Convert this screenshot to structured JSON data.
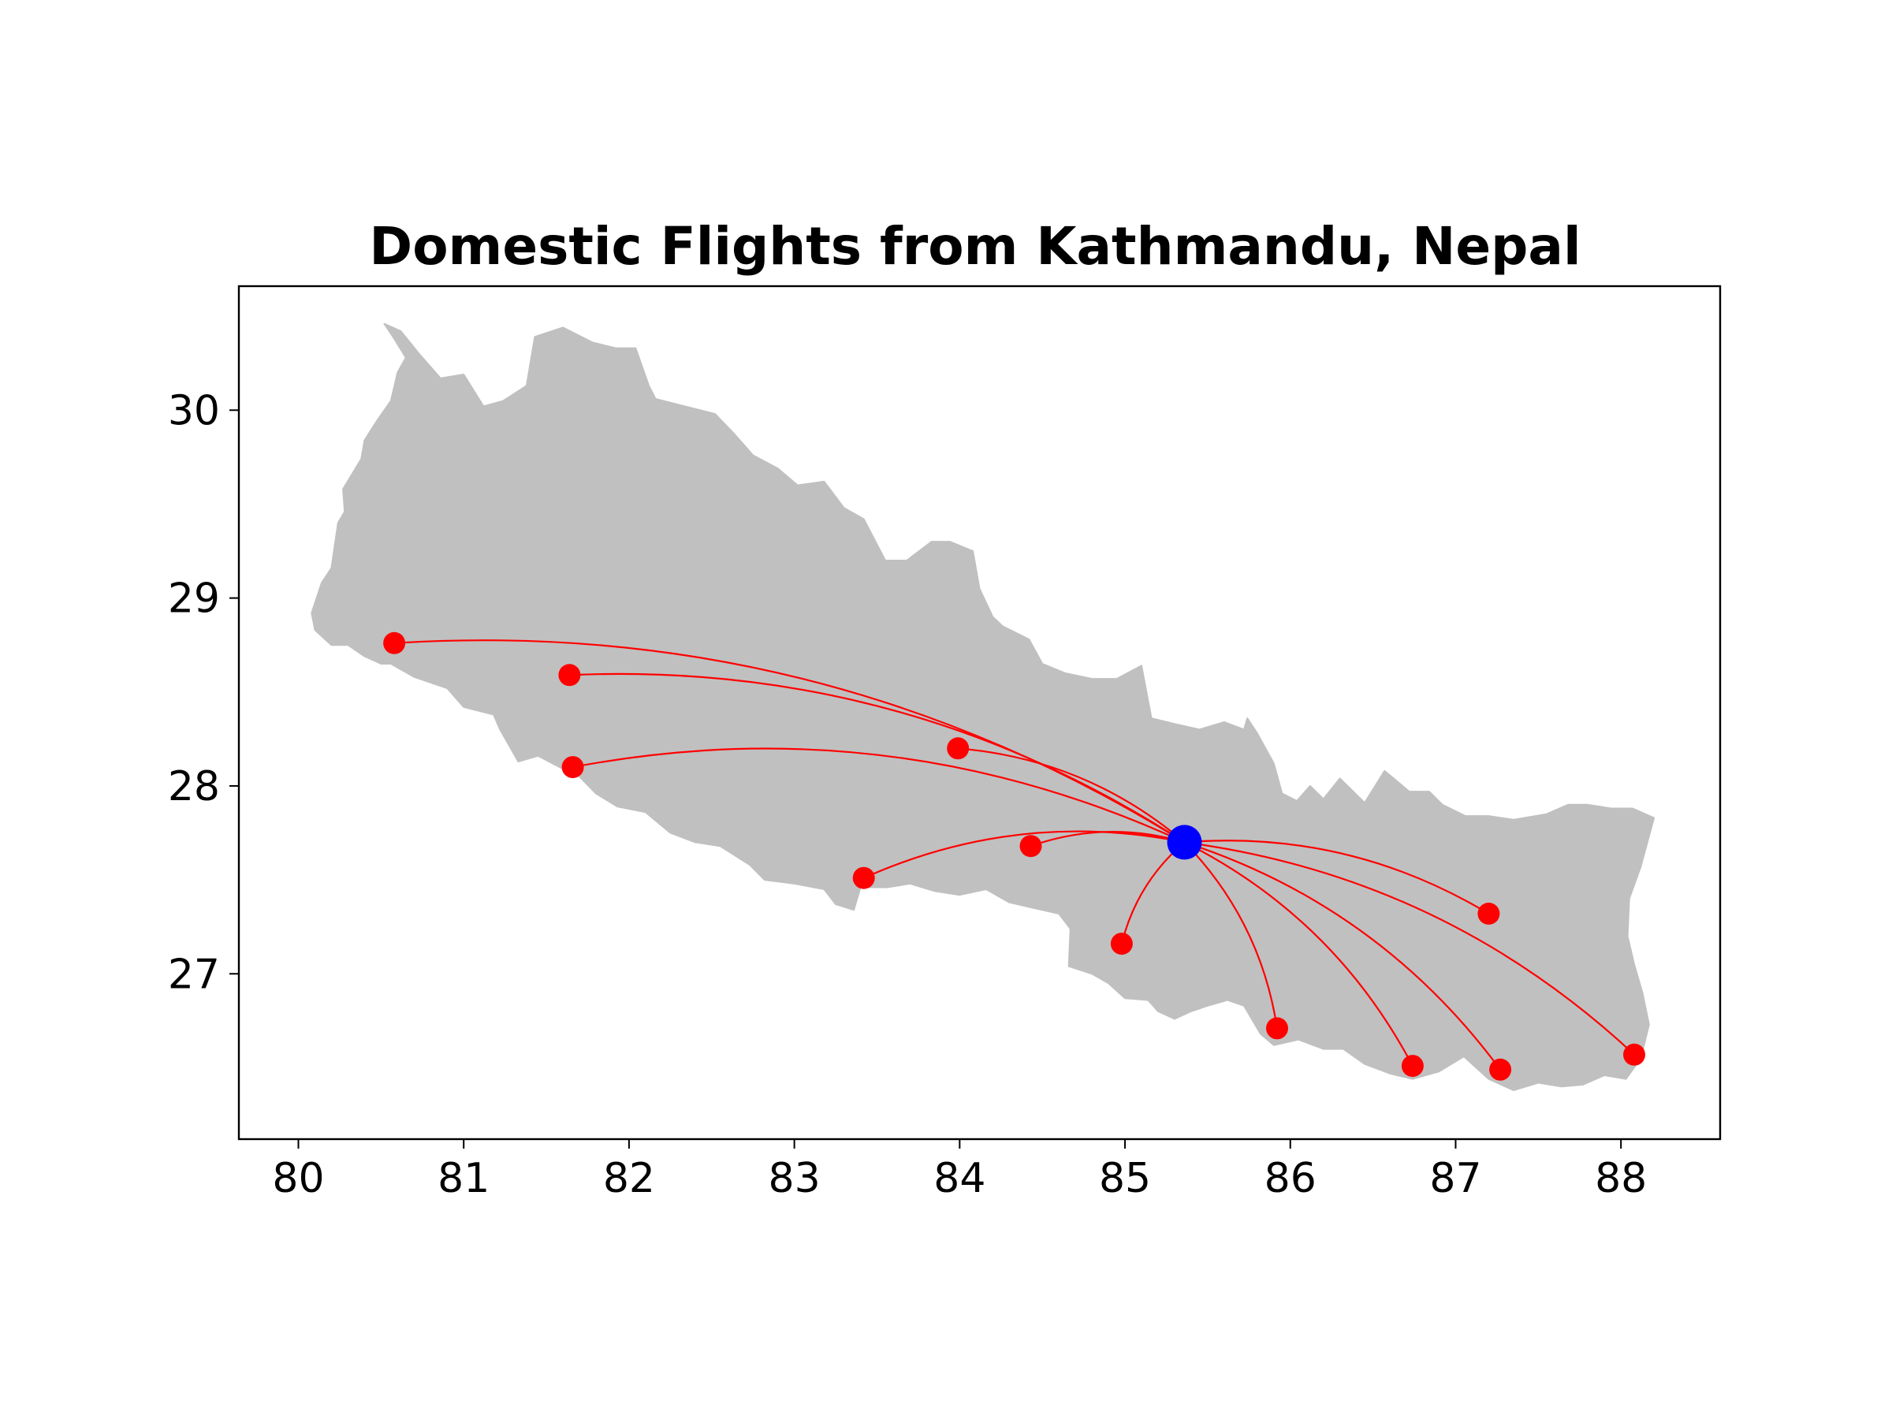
{
  "chart_data": {
    "type": "map",
    "title": "Domestic Flights from Kathmandu, Nepal",
    "xlabel": "",
    "ylabel": "",
    "xlim": [
      79.64,
      88.6
    ],
    "ylim": [
      26.12,
      30.66
    ],
    "xticks": [
      80,
      81,
      82,
      83,
      84,
      85,
      86,
      87,
      88
    ],
    "yticks": [
      27,
      28,
      29,
      30
    ],
    "grid": false,
    "colors": {
      "land": "#c0c0c0",
      "district_border": "#d3d3d3",
      "route": "#ff0000",
      "destination": "#ff0000",
      "origin": "#0000ff",
      "axes": "#000000"
    },
    "origin": {
      "lon": 85.36,
      "lat": 27.7
    },
    "destinations": [
      {
        "lon": 80.58,
        "lat": 28.76
      },
      {
        "lon": 81.64,
        "lat": 28.59
      },
      {
        "lon": 81.66,
        "lat": 28.1
      },
      {
        "lon": 83.99,
        "lat": 28.2
      },
      {
        "lon": 84.43,
        "lat": 27.68
      },
      {
        "lon": 83.42,
        "lat": 27.51
      },
      {
        "lon": 84.98,
        "lat": 27.16
      },
      {
        "lon": 85.92,
        "lat": 26.71
      },
      {
        "lon": 86.74,
        "lat": 26.51
      },
      {
        "lon": 87.27,
        "lat": 26.49
      },
      {
        "lon": 87.2,
        "lat": 27.32
      },
      {
        "lon": 88.08,
        "lat": 26.57
      }
    ],
    "nepal_outline": [
      [
        80.52,
        30.46
      ],
      [
        80.62,
        30.42
      ],
      [
        80.73,
        30.3
      ],
      [
        80.86,
        30.17
      ],
      [
        81.0,
        30.19
      ],
      [
        81.12,
        30.02
      ],
      [
        81.24,
        30.05
      ],
      [
        81.38,
        30.13
      ],
      [
        81.43,
        30.39
      ],
      [
        81.6,
        30.44
      ],
      [
        81.78,
        30.36
      ],
      [
        81.92,
        30.33
      ],
      [
        82.04,
        30.33
      ],
      [
        82.12,
        30.13
      ],
      [
        82.16,
        30.06
      ],
      [
        82.52,
        29.98
      ],
      [
        82.63,
        29.88
      ],
      [
        82.75,
        29.76
      ],
      [
        82.9,
        29.69
      ],
      [
        83.02,
        29.6
      ],
      [
        83.18,
        29.62
      ],
      [
        83.3,
        29.48
      ],
      [
        83.42,
        29.42
      ],
      [
        83.55,
        29.2
      ],
      [
        83.68,
        29.2
      ],
      [
        83.83,
        29.3
      ],
      [
        83.94,
        29.3
      ],
      [
        84.08,
        29.25
      ],
      [
        84.12,
        29.05
      ],
      [
        84.2,
        28.9
      ],
      [
        84.26,
        28.85
      ],
      [
        84.42,
        28.78
      ],
      [
        84.5,
        28.65
      ],
      [
        84.64,
        28.6
      ],
      [
        84.8,
        28.57
      ],
      [
        84.95,
        28.57
      ],
      [
        85.1,
        28.64
      ],
      [
        85.13,
        28.5
      ],
      [
        85.16,
        28.36
      ],
      [
        85.3,
        28.33
      ],
      [
        85.45,
        28.3
      ],
      [
        85.6,
        28.34
      ],
      [
        85.72,
        28.3
      ],
      [
        85.74,
        28.36
      ],
      [
        85.8,
        28.28
      ],
      [
        85.9,
        28.12
      ],
      [
        85.95,
        27.96
      ],
      [
        86.04,
        27.92
      ],
      [
        86.12,
        28.0
      ],
      [
        86.2,
        27.93
      ],
      [
        86.3,
        28.04
      ],
      [
        86.45,
        27.91
      ],
      [
        86.57,
        28.08
      ],
      [
        86.72,
        27.97
      ],
      [
        86.84,
        27.97
      ],
      [
        86.92,
        27.9
      ],
      [
        87.06,
        27.84
      ],
      [
        87.2,
        27.84
      ],
      [
        87.35,
        27.82
      ],
      [
        87.55,
        27.85
      ],
      [
        87.68,
        27.9
      ],
      [
        87.8,
        27.9
      ],
      [
        87.94,
        27.88
      ],
      [
        88.07,
        27.88
      ],
      [
        88.2,
        27.83
      ],
      [
        88.12,
        27.57
      ],
      [
        88.05,
        27.4
      ],
      [
        88.04,
        27.2
      ],
      [
        88.08,
        27.05
      ],
      [
        88.13,
        26.9
      ],
      [
        88.17,
        26.73
      ],
      [
        88.12,
        26.55
      ],
      [
        88.03,
        26.44
      ],
      [
        87.9,
        26.46
      ],
      [
        87.77,
        26.41
      ],
      [
        87.64,
        26.4
      ],
      [
        87.5,
        26.42
      ],
      [
        87.35,
        26.38
      ],
      [
        87.2,
        26.44
      ],
      [
        87.05,
        26.56
      ],
      [
        86.9,
        26.48
      ],
      [
        86.74,
        26.44
      ],
      [
        86.6,
        26.47
      ],
      [
        86.45,
        26.52
      ],
      [
        86.32,
        26.6
      ],
      [
        86.2,
        26.6
      ],
      [
        86.05,
        26.65
      ],
      [
        85.9,
        26.62
      ],
      [
        85.82,
        26.68
      ],
      [
        85.72,
        26.83
      ],
      [
        85.62,
        26.86
      ],
      [
        85.5,
        26.83
      ],
      [
        85.4,
        26.8
      ],
      [
        85.3,
        26.76
      ],
      [
        85.2,
        26.8
      ],
      [
        85.14,
        26.86
      ],
      [
        85.0,
        26.87
      ],
      [
        84.9,
        26.95
      ],
      [
        84.8,
        27.0
      ],
      [
        84.66,
        27.04
      ],
      [
        84.67,
        27.24
      ],
      [
        84.6,
        27.32
      ],
      [
        84.4,
        27.36
      ],
      [
        84.3,
        27.38
      ],
      [
        84.16,
        27.45
      ],
      [
        84.0,
        27.42
      ],
      [
        83.85,
        27.44
      ],
      [
        83.7,
        27.48
      ],
      [
        83.56,
        27.46
      ],
      [
        83.4,
        27.46
      ],
      [
        83.36,
        27.34
      ],
      [
        83.25,
        27.37
      ],
      [
        83.18,
        27.45
      ],
      [
        83.0,
        27.48
      ],
      [
        82.82,
        27.5
      ],
      [
        82.73,
        27.58
      ],
      [
        82.55,
        27.68
      ],
      [
        82.4,
        27.7
      ],
      [
        82.25,
        27.75
      ],
      [
        82.1,
        27.86
      ],
      [
        81.93,
        27.89
      ],
      [
        81.8,
        27.96
      ],
      [
        81.7,
        28.05
      ],
      [
        81.58,
        28.1
      ],
      [
        81.45,
        28.16
      ],
      [
        81.33,
        28.13
      ],
      [
        81.22,
        28.3
      ],
      [
        81.18,
        28.38
      ],
      [
        81.0,
        28.42
      ],
      [
        80.9,
        28.52
      ],
      [
        80.7,
        28.58
      ],
      [
        80.56,
        28.65
      ],
      [
        80.5,
        28.65
      ],
      [
        80.4,
        28.69
      ],
      [
        80.3,
        28.75
      ],
      [
        80.2,
        28.75
      ],
      [
        80.1,
        28.83
      ],
      [
        80.08,
        28.92
      ],
      [
        80.14,
        29.08
      ],
      [
        80.2,
        29.16
      ],
      [
        80.24,
        29.4
      ],
      [
        80.28,
        29.46
      ],
      [
        80.27,
        29.58
      ],
      [
        80.38,
        29.74
      ],
      [
        80.4,
        29.84
      ],
      [
        80.48,
        29.95
      ],
      [
        80.56,
        30.05
      ],
      [
        80.6,
        30.2
      ],
      [
        80.65,
        30.28
      ],
      [
        80.58,
        30.38
      ]
    ]
  }
}
